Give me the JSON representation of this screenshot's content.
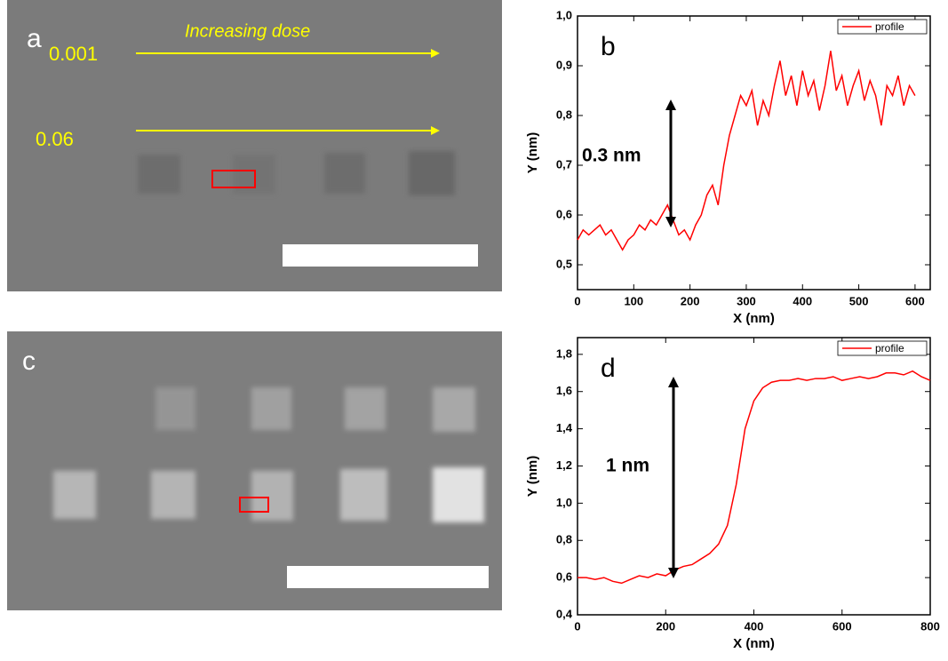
{
  "panels": [
    {
      "letter": "a",
      "labels": [
        "0.001",
        "Increasing dose",
        "0.06"
      ]
    },
    {
      "letter": "c"
    }
  ],
  "chart_data": [
    {
      "type": "line",
      "letter": "b",
      "annotation": "0.3 nm",
      "xlabel": "X (nm)",
      "ylabel": "Y (nm)",
      "xlim": [
        0,
        627
      ],
      "ylim": [
        0.45,
        1.0
      ],
      "xticks": [
        0,
        100,
        200,
        300,
        400,
        500,
        600
      ],
      "yticks": [
        {
          "value": 0.5,
          "label": "0,5"
        },
        {
          "value": 0.6,
          "label": "0,6"
        },
        {
          "value": 0.7,
          "label": "0,7"
        },
        {
          "value": 0.8,
          "label": "0,8"
        },
        {
          "value": 0.9,
          "label": "0,9"
        },
        {
          "value": 1.0,
          "label": "1,0"
        }
      ],
      "legend": "upper right",
      "x": [
        0,
        10,
        20,
        30,
        40,
        50,
        60,
        70,
        80,
        90,
        100,
        110,
        120,
        130,
        140,
        150,
        160,
        170,
        180,
        190,
        200,
        210,
        220,
        230,
        240,
        250,
        260,
        270,
        280,
        290,
        300,
        310,
        320,
        330,
        340,
        350,
        360,
        370,
        380,
        390,
        400,
        410,
        420,
        430,
        440,
        450,
        460,
        470,
        480,
        490,
        500,
        510,
        520,
        530,
        540,
        550,
        560,
        570,
        580,
        590,
        600
      ],
      "series": [
        {
          "name": "profile",
          "color": "#ff0000",
          "values": [
            0.55,
            0.57,
            0.56,
            0.57,
            0.58,
            0.56,
            0.57,
            0.55,
            0.53,
            0.55,
            0.56,
            0.58,
            0.57,
            0.59,
            0.58,
            0.6,
            0.62,
            0.59,
            0.56,
            0.57,
            0.55,
            0.58,
            0.6,
            0.64,
            0.66,
            0.62,
            0.7,
            0.76,
            0.8,
            0.84,
            0.82,
            0.85,
            0.78,
            0.83,
            0.8,
            0.86,
            0.91,
            0.84,
            0.88,
            0.82,
            0.89,
            0.84,
            0.87,
            0.81,
            0.86,
            0.93,
            0.85,
            0.88,
            0.82,
            0.86,
            0.89,
            0.83,
            0.87,
            0.84,
            0.78,
            0.86,
            0.84,
            0.88,
            0.82,
            0.86,
            0.84
          ]
        }
      ]
    },
    {
      "type": "line",
      "letter": "d",
      "annotation": "1 nm",
      "xlabel": "X (nm)",
      "ylabel": "Y (nm)",
      "xlim": [
        0,
        800
      ],
      "ylim": [
        0.4,
        1.89
      ],
      "xticks": [
        0,
        200,
        400,
        600,
        800
      ],
      "yticks": [
        {
          "value": 0.4,
          "label": "0,4"
        },
        {
          "value": 0.6,
          "label": "0,6"
        },
        {
          "value": 0.8,
          "label": "0,8"
        },
        {
          "value": 1.0,
          "label": "1,0"
        },
        {
          "value": 1.2,
          "label": "1,2"
        },
        {
          "value": 1.4,
          "label": "1,4"
        },
        {
          "value": 1.6,
          "label": "1,6"
        },
        {
          "value": 1.8,
          "label": "1,8"
        }
      ],
      "legend": "upper right",
      "x": [
        0,
        20,
        40,
        60,
        80,
        100,
        120,
        140,
        160,
        180,
        200,
        220,
        240,
        260,
        280,
        300,
        320,
        340,
        360,
        380,
        400,
        420,
        440,
        460,
        480,
        500,
        520,
        540,
        560,
        580,
        600,
        620,
        640,
        660,
        680,
        700,
        720,
        740,
        760,
        780,
        800
      ],
      "series": [
        {
          "name": "profile",
          "color": "#ff0000",
          "values": [
            0.6,
            0.6,
            0.59,
            0.6,
            0.58,
            0.57,
            0.59,
            0.61,
            0.6,
            0.62,
            0.61,
            0.64,
            0.66,
            0.67,
            0.7,
            0.73,
            0.78,
            0.88,
            1.1,
            1.4,
            1.55,
            1.62,
            1.65,
            1.66,
            1.66,
            1.67,
            1.66,
            1.67,
            1.67,
            1.68,
            1.66,
            1.67,
            1.68,
            1.67,
            1.68,
            1.7,
            1.7,
            1.69,
            1.71,
            1.68,
            1.66
          ]
        }
      ]
    }
  ]
}
